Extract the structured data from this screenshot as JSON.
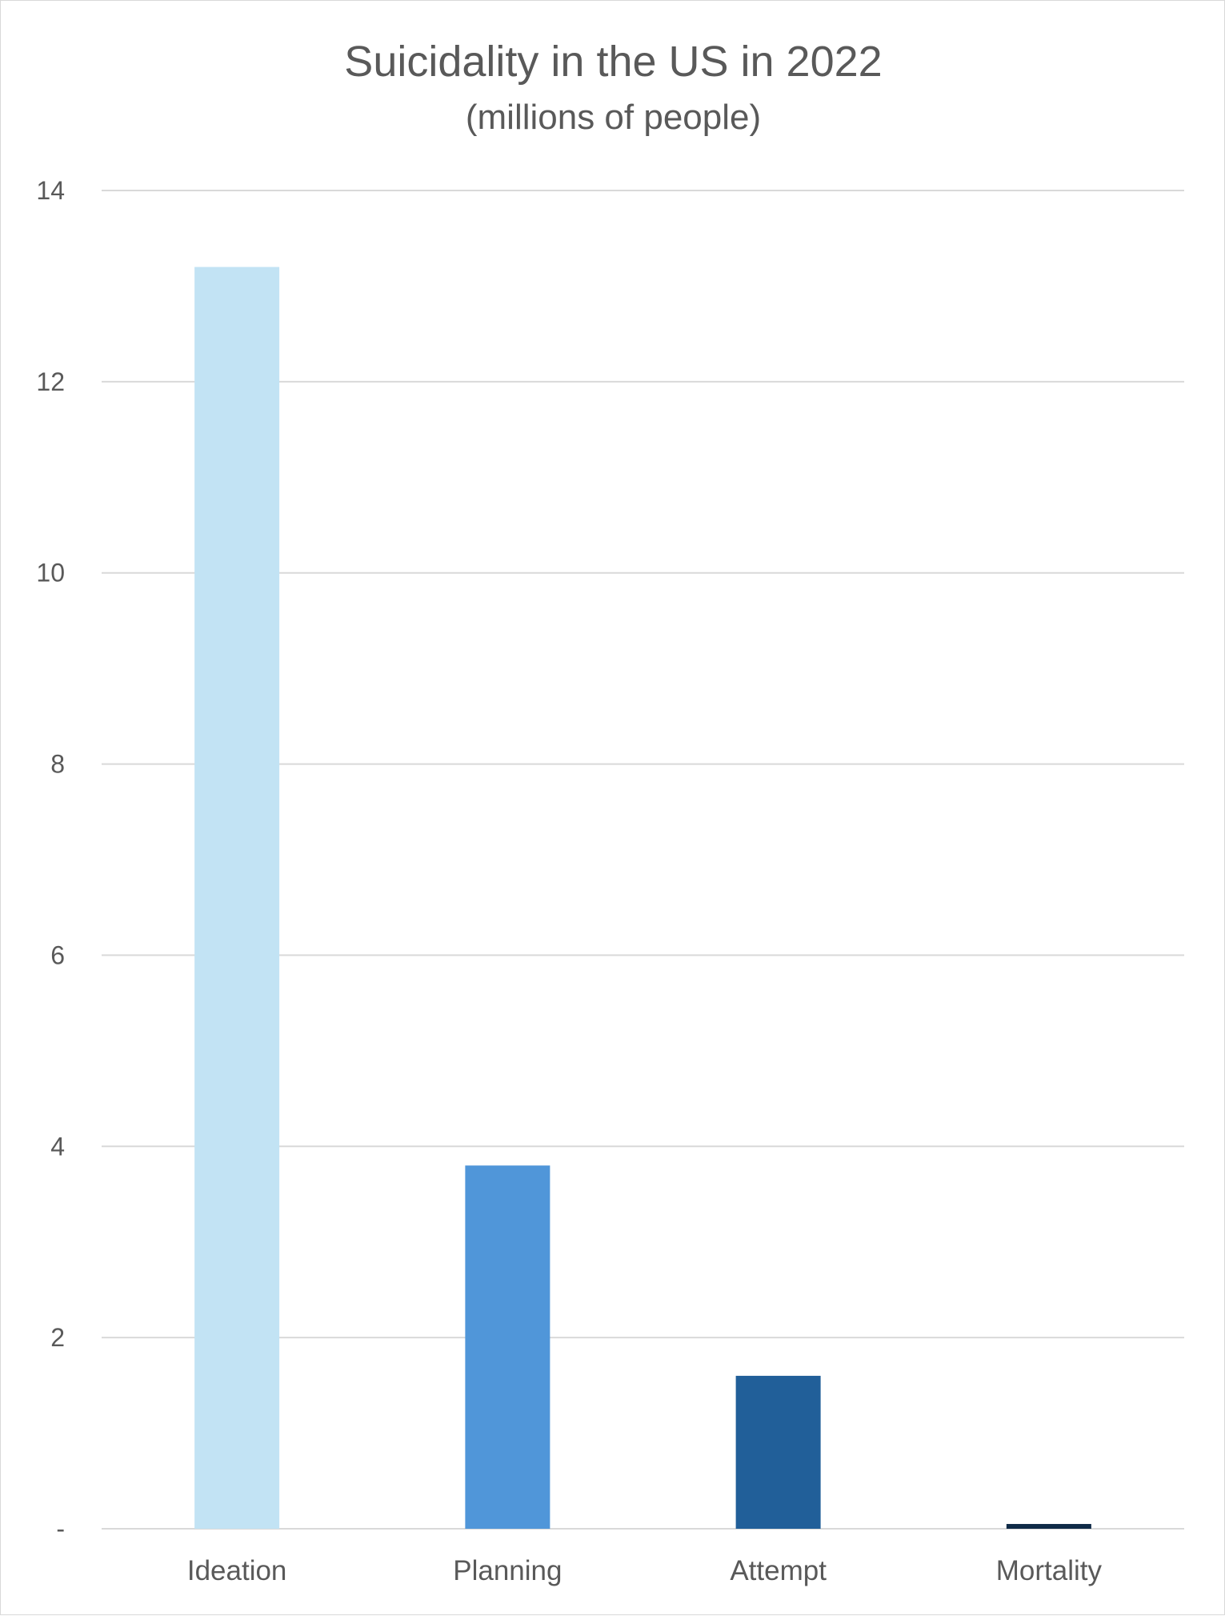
{
  "chart_data": {
    "type": "bar",
    "title": "Suicidality in the US in 2022",
    "subtitle": "(millions of people)",
    "xlabel": "",
    "ylabel": "",
    "categories": [
      "Ideation",
      "Planning",
      "Attempt",
      "Mortality"
    ],
    "values": [
      13.2,
      3.8,
      1.6,
      0.05
    ],
    "colors": [
      "#c2e3f4",
      "#5096d9",
      "#215f99",
      "#0f2a47"
    ],
    "ylim": [
      0,
      14
    ],
    "yticks": [
      0,
      2,
      4,
      6,
      8,
      10,
      12,
      14
    ],
    "ytick_labels": [
      "-",
      "2",
      "4",
      "6",
      "8",
      "10",
      "12",
      "14"
    ],
    "grid": true,
    "gridline_color": "#d9d9d9",
    "axis_text_color": "#595959",
    "legend": "none"
  }
}
